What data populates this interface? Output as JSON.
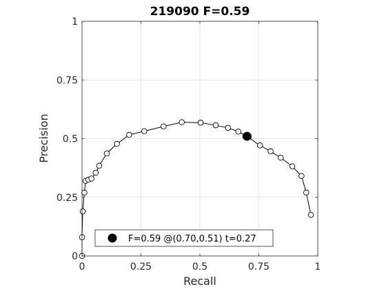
{
  "chart_data": {
    "type": "line",
    "title": "219090 F=0.59",
    "xlabel": "Recall",
    "ylabel": "Precision",
    "xlim": [
      0,
      1
    ],
    "ylim": [
      0,
      1
    ],
    "grid": true,
    "x_ticks": [
      {
        "value": 0,
        "label": "0"
      },
      {
        "value": 0.25,
        "label": "0.25"
      },
      {
        "value": 0.5,
        "label": "0.5"
      },
      {
        "value": 0.75,
        "label": "0.75"
      },
      {
        "value": 1,
        "label": "1"
      }
    ],
    "y_ticks": [
      {
        "value": 0,
        "label": "0"
      },
      {
        "value": 0.25,
        "label": "0.25"
      },
      {
        "value": 0.5,
        "label": "0.5"
      },
      {
        "value": 0.75,
        "label": "0.75"
      },
      {
        "value": 1,
        "label": "1"
      }
    ],
    "series": [
      {
        "points": [
          [
            0.0,
            0.0
          ],
          [
            0.0,
            0.08
          ],
          [
            0.003,
            0.19
          ],
          [
            0.01,
            0.27
          ],
          [
            0.015,
            0.32
          ],
          [
            0.027,
            0.325
          ],
          [
            0.04,
            0.33
          ],
          [
            0.058,
            0.355
          ],
          [
            0.073,
            0.385
          ],
          [
            0.105,
            0.437
          ],
          [
            0.148,
            0.478
          ],
          [
            0.2,
            0.516
          ],
          [
            0.264,
            0.532
          ],
          [
            0.346,
            0.552
          ],
          [
            0.423,
            0.57
          ],
          [
            0.503,
            0.568
          ],
          [
            0.567,
            0.557
          ],
          [
            0.619,
            0.546
          ],
          [
            0.663,
            0.53
          ],
          [
            0.7,
            0.51
          ],
          [
            0.755,
            0.471
          ],
          [
            0.8,
            0.446
          ],
          [
            0.843,
            0.419
          ],
          [
            0.892,
            0.382
          ],
          [
            0.931,
            0.341
          ],
          [
            0.951,
            0.27
          ],
          [
            0.971,
            0.175
          ]
        ],
        "color": "#000000"
      }
    ],
    "highlight": {
      "x": 0.7,
      "y": 0.51
    },
    "legend": {
      "label": "F=0.59 @(0.70,0.51) t=0.27",
      "placement": "bottom-center"
    }
  }
}
